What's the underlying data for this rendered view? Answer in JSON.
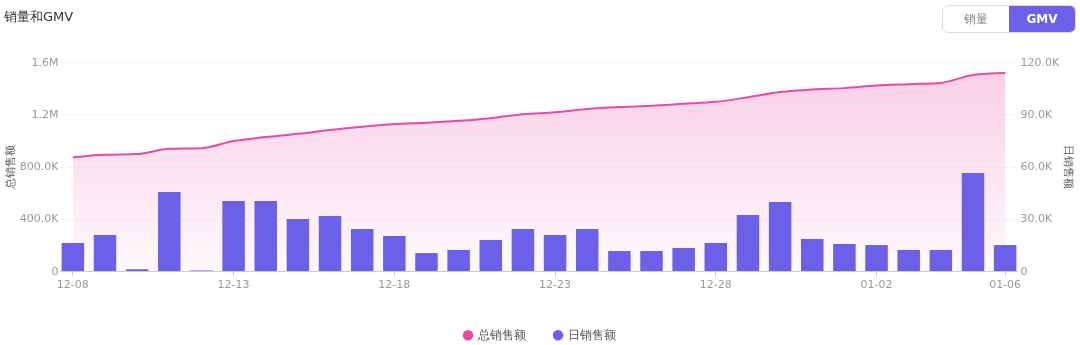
{
  "chart_data": {
    "type": "bar",
    "title": "销量和GMV",
    "ylabel": "总销售额",
    "y2label": "日销售额",
    "categories": [
      "12-08",
      null,
      null,
      null,
      null,
      "12-13",
      null,
      null,
      null,
      null,
      "12-18",
      null,
      null,
      null,
      null,
      "12-23",
      null,
      null,
      null,
      null,
      "12-28",
      null,
      null,
      null,
      null,
      "01-02",
      null,
      null,
      null,
      "01-06"
    ],
    "series": [
      {
        "name": "总销售额",
        "type": "area",
        "axis": "y",
        "color": "#ea4aa6",
        "values": [
          870000,
          890000,
          895000,
          935000,
          940000,
          995000,
          1025000,
          1050000,
          1080000,
          1105000,
          1125000,
          1135000,
          1150000,
          1170000,
          1200000,
          1215000,
          1240000,
          1255000,
          1265000,
          1280000,
          1295000,
          1330000,
          1370000,
          1390000,
          1400000,
          1420000,
          1430000,
          1440000,
          1500000,
          1515000
        ]
      },
      {
        "name": "日销售额",
        "axis": "y2",
        "color": "#6c5fe8",
        "values": [
          16100,
          20700,
          1000,
          45400,
          300,
          40200,
          40200,
          29900,
          31600,
          24100,
          20100,
          10300,
          12100,
          17800,
          24100,
          20700,
          24100,
          11500,
          11500,
          13200,
          16100,
          32100,
          39600,
          18400,
          15500,
          14900,
          12100,
          12100,
          56300,
          14900
        ]
      }
    ],
    "ylim": [
      0,
      1600000
    ],
    "yticks": [
      0,
      {
        "value": 400000,
        "label": "400.0K"
      },
      {
        "value": 800000,
        "label": "800.0K"
      },
      {
        "value": 1200000,
        "label": "1.2M"
      },
      {
        "value": 1600000,
        "label": "1.6M"
      }
    ],
    "y2lim": [
      0,
      120000
    ],
    "y2ticks": [
      0,
      {
        "value": 30000,
        "label": "30.0K"
      },
      {
        "value": 60000,
        "label": "60.0K"
      },
      {
        "value": 90000,
        "label": "90.0K"
      },
      {
        "value": 120000,
        "label": "120.0K"
      }
    ],
    "grid": "y",
    "legend": "bottom",
    "annotations": [
      "销量",
      "GMV"
    ]
  }
}
